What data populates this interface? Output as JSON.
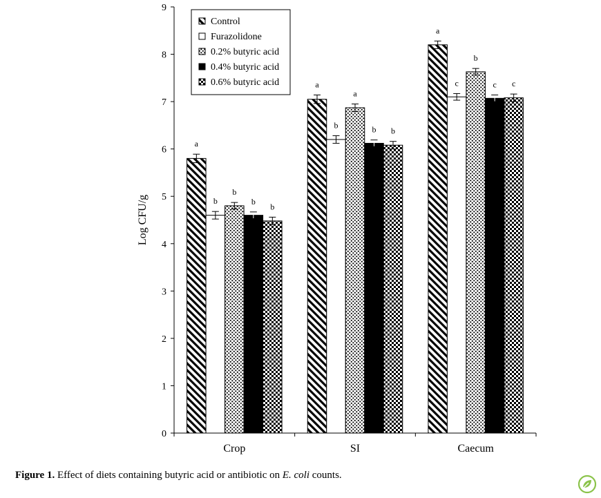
{
  "chart_data": {
    "type": "bar",
    "title": "",
    "xlabel": "",
    "ylabel": "Log CFU/g",
    "ylim": [
      0,
      9
    ],
    "yticks": [
      0,
      1,
      2,
      3,
      4,
      5,
      6,
      7,
      8,
      9
    ],
    "grid": false,
    "legend_position": "top-left",
    "categories": [
      "Crop",
      "SI",
      "Caecum"
    ],
    "series": [
      {
        "name": "Control",
        "pattern": "diagonal-stripes",
        "values": [
          5.8,
          7.05,
          8.2
        ],
        "errors": [
          0.09,
          0.09,
          0.08
        ],
        "letters": [
          "a",
          "a",
          "a"
        ]
      },
      {
        "name": "Furazolidone",
        "pattern": "white",
        "values": [
          4.6,
          6.2,
          7.1
        ],
        "errors": [
          0.08,
          0.08,
          0.07
        ],
        "letters": [
          "b",
          "b",
          "c"
        ]
      },
      {
        "name": "0.2% butyric acid",
        "pattern": "dots",
        "values": [
          4.8,
          6.87,
          7.63
        ],
        "errors": [
          0.07,
          0.08,
          0.07
        ],
        "letters": [
          "b",
          "a",
          "b"
        ]
      },
      {
        "name": "0.4% butyric acid",
        "pattern": "solid-black",
        "values": [
          4.6,
          6.12,
          7.07
        ],
        "errors": [
          0.07,
          0.07,
          0.07
        ],
        "letters": [
          "b",
          "b",
          "c"
        ]
      },
      {
        "name": "0.6% butyric acid",
        "pattern": "checker",
        "values": [
          4.48,
          6.08,
          7.08
        ],
        "errors": [
          0.08,
          0.08,
          0.08
        ],
        "letters": [
          "b",
          "b",
          "c"
        ]
      }
    ]
  },
  "caption": {
    "label": "Figure 1.",
    "text_before": " Effect of diets containing butyric acid or antibiotic on ",
    "italic": "E. coli",
    "text_after": " counts."
  },
  "logo_icon": "leaf-logo-icon",
  "colors": {
    "logo": "#8bc34a"
  }
}
